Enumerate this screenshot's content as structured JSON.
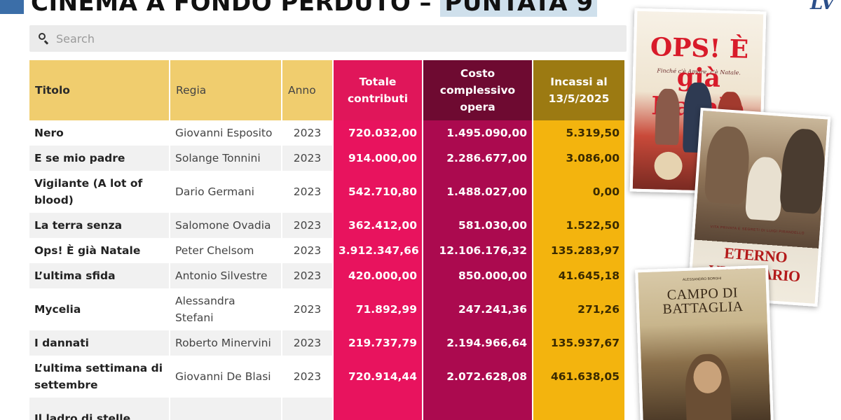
{
  "headline": {
    "text": "CINEMA A FONDO PERDUTO –",
    "highlight": "PUNTATA 9"
  },
  "brand": {
    "logo": "LV"
  },
  "search": {
    "placeholder": "Search",
    "icon": "search-icon"
  },
  "table": {
    "headers": {
      "title": "Titolo",
      "director": "Regia",
      "year": "Anno",
      "contributions": [
        "Totale",
        "contributi"
      ],
      "cost": [
        "Costo",
        "complessivo",
        "opera"
      ],
      "income": [
        "Incassi al",
        "13/5/2025"
      ]
    },
    "rows": [
      {
        "title": "Nero",
        "director": "Giovanni Esposito",
        "year": "2023",
        "contributions": "720.032,00",
        "cost": "1.495.090,00",
        "income": "5.319,50"
      },
      {
        "title": "E se mio padre",
        "director": "Solange Tonnini",
        "year": "2023",
        "contributions": "914.000,00",
        "cost": "2.286.677,00",
        "income": "3.086,00"
      },
      {
        "title": "Vigilante (A lot of blood)",
        "director": "Dario Germani",
        "year": "2023",
        "contributions": "542.710,80",
        "cost": "1.488.027,00",
        "income": "0,00"
      },
      {
        "title": "La terra senza",
        "director": "Salomone Ovadia",
        "year": "2023",
        "contributions": "362.412,00",
        "cost": "581.030,00",
        "income": "1.522,50"
      },
      {
        "title": "Ops! È già Natale",
        "director": "Peter Chelsom",
        "year": "2023",
        "contributions": "3.912.347,66",
        "cost": "12.106.176,32",
        "income": "135.283,97"
      },
      {
        "title": "L’ultima sfida",
        "director": "Antonio Silvestre",
        "year": "2023",
        "contributions": "420.000,00",
        "cost": "850.000,00",
        "income": "41.645,18"
      },
      {
        "title": "Mycelia",
        "director": "Alessandra Stefani",
        "year": "2023",
        "contributions": "71.892,99",
        "cost": "247.241,36",
        "income": "271,26"
      },
      {
        "title": "I dannati",
        "director": "Roberto Minervini",
        "year": "2023",
        "contributions": "219.737,79",
        "cost": "2.194.966,64",
        "income": "135.937,67"
      },
      {
        "title": "L’ultima settimana di settembre",
        "director": "Giovanni De Blasi",
        "year": "2023",
        "contributions": "720.914,44",
        "cost": "2.072.628,08",
        "income": "461.638,05"
      },
      {
        "title": "Il ladro di stelle",
        "director": "",
        "year": "",
        "contributions": "",
        "cost": "",
        "income": ""
      }
    ]
  },
  "posters": {
    "ops": {
      "title": "OPS! È già Natale",
      "tagline": "Finché c'è Amore, c'è Natale."
    },
    "eterno": {
      "title": "ETERNO VISIONARIO",
      "tagline": "VITA PRIVATA E SEGRETI DI LUIGI PIRANDELLO"
    },
    "campo": {
      "title": "CAMPO DI BATTAGLIA",
      "credit": "ALESSANDRO BORGHI"
    }
  },
  "colors": {
    "header_yellow": "#f0cd6e",
    "contrib_pink": "#e8135e",
    "cost_crimson": "#ab0a4f",
    "income_gold": "#f3b40e"
  }
}
